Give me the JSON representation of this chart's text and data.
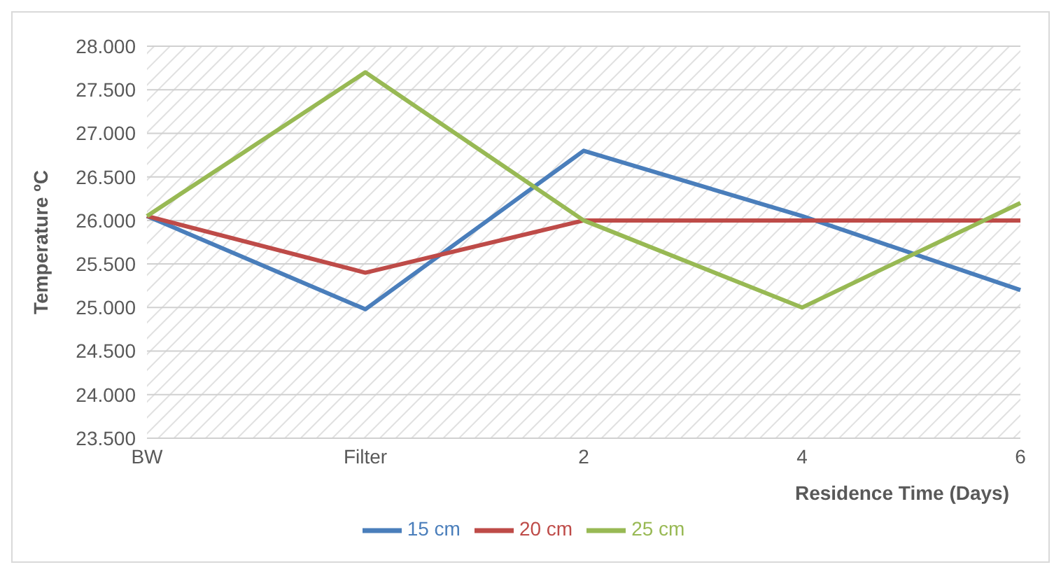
{
  "chart_data": {
    "type": "line",
    "xlabel": "Residence Time (Days)",
    "ylabel": "Temperature ºC",
    "categories": [
      "BW",
      "Filter",
      "2",
      "4",
      "6"
    ],
    "series": [
      {
        "name": "15 cm",
        "color": "#4a7ebb",
        "values": [
          26.05,
          24.98,
          26.8,
          26.05,
          25.2
        ]
      },
      {
        "name": "20 cm",
        "color": "#be4b48",
        "values": [
          26.05,
          25.4,
          26.0,
          26.0,
          26.0
        ]
      },
      {
        "name": "25 cm",
        "color": "#98b954",
        "values": [
          26.05,
          27.7,
          26.0,
          25.0,
          26.2
        ]
      }
    ],
    "ylim": [
      23.5,
      28
    ],
    "yticks": [
      {
        "value": 23.5,
        "label": "23.500"
      },
      {
        "value": 24,
        "label": "24.000"
      },
      {
        "value": 24.5,
        "label": "24.500"
      },
      {
        "value": 25,
        "label": "25.000"
      },
      {
        "value": 25.5,
        "label": "25.500"
      },
      {
        "value": 26,
        "label": "26.000"
      },
      {
        "value": 26.5,
        "label": "26.500"
      },
      {
        "value": 27,
        "label": "27.000"
      },
      {
        "value": 27.5,
        "label": "27.500"
      },
      {
        "value": 28,
        "label": "28.000"
      }
    ],
    "grid": "y",
    "legend": "bottom",
    "marker": "none",
    "line_style": "solid"
  }
}
